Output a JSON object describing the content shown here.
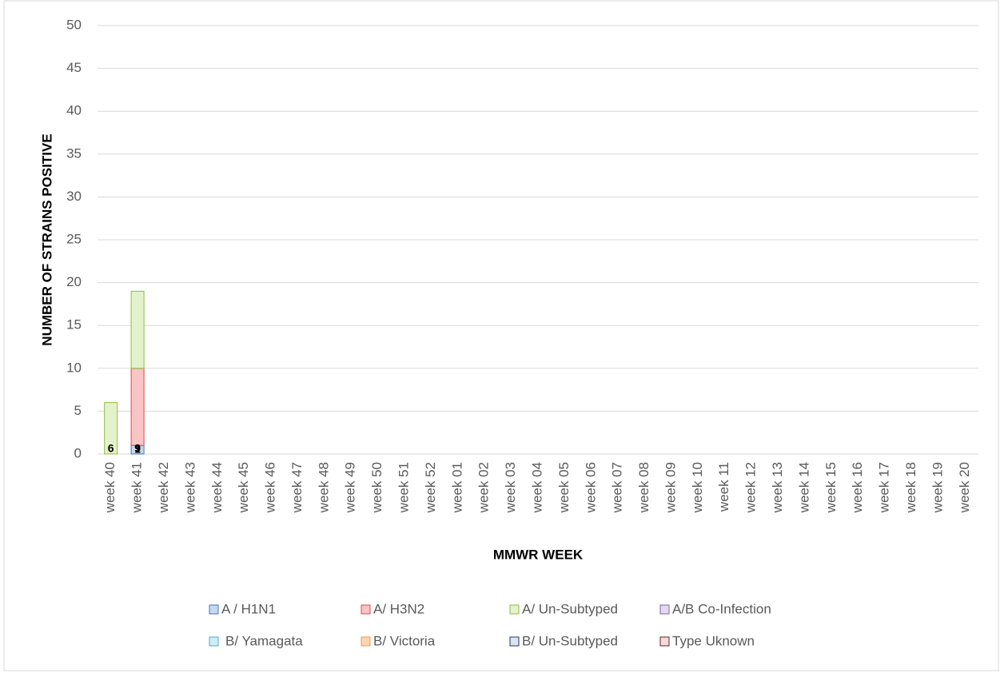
{
  "chart_data": {
    "type": "stacked_bar",
    "y_label": "NUMBER OF STRAINS POSITIVE",
    "x_label": "MMWR WEEK",
    "categories": [
      "week 40",
      "week 41",
      "week 42",
      "week 43",
      "week 44",
      "week 45",
      "week 46",
      "week 47",
      "week 48",
      "week 49",
      "week 50",
      "week 51",
      "week 52",
      "week 01",
      "week 02",
      "week 03",
      "week 04",
      "week 05",
      "week 06",
      "week 07",
      "week 08",
      "week 09",
      "week 10",
      "week 11",
      "week 12",
      "week 13",
      "week 14",
      "week 15",
      "week 16",
      "week 17",
      "week 18",
      "week 19",
      "week 20"
    ],
    "series": [
      {
        "name": "A / H1N1",
        "color": "#c5d9f1",
        "edge": "#4472c4",
        "values": [
          null,
          1,
          null,
          null,
          null,
          null,
          null,
          null,
          null,
          null,
          null,
          null,
          null,
          null,
          null,
          null,
          null,
          null,
          null,
          null,
          null,
          null,
          null,
          null,
          null,
          null,
          null,
          null,
          null,
          null,
          null,
          null,
          null
        ]
      },
      {
        "name": "A/ H3N2",
        "color": "#f8c4c4",
        "edge": "#e04848",
        "values": [
          null,
          9,
          null,
          null,
          null,
          null,
          null,
          null,
          null,
          null,
          null,
          null,
          null,
          null,
          null,
          null,
          null,
          null,
          null,
          null,
          null,
          null,
          null,
          null,
          null,
          null,
          null,
          null,
          null,
          null,
          null,
          null,
          null
        ]
      },
      {
        "name": "A/ Un-Subtyped",
        "color": "#e4f2cc",
        "edge": "#8cbf3f",
        "values": [
          6,
          9,
          null,
          null,
          null,
          null,
          null,
          null,
          null,
          null,
          null,
          null,
          null,
          null,
          null,
          null,
          null,
          null,
          null,
          null,
          null,
          null,
          null,
          null,
          null,
          null,
          null,
          null,
          null,
          null,
          null,
          null,
          null
        ]
      },
      {
        "name": "A/B Co-Infection",
        "color": "#e4d8f2",
        "edge": "#8064a2",
        "values": [
          null,
          null,
          null,
          null,
          null,
          null,
          null,
          null,
          null,
          null,
          null,
          null,
          null,
          null,
          null,
          null,
          null,
          null,
          null,
          null,
          null,
          null,
          null,
          null,
          null,
          null,
          null,
          null,
          null,
          null,
          null,
          null,
          null
        ]
      },
      {
        "name": "B/ Yamagata",
        "color": "#cdeef8",
        "edge": "#4bacc6",
        "values": [
          null,
          null,
          null,
          null,
          null,
          null,
          null,
          null,
          null,
          null,
          null,
          null,
          null,
          null,
          null,
          null,
          null,
          null,
          null,
          null,
          null,
          null,
          null,
          null,
          null,
          null,
          null,
          null,
          null,
          null,
          null,
          null,
          null
        ]
      },
      {
        "name": "B/ Victoria",
        "color": "#fcd5b4",
        "edge": "#f79646",
        "values": [
          null,
          null,
          null,
          null,
          null,
          null,
          null,
          null,
          null,
          null,
          null,
          null,
          null,
          null,
          null,
          null,
          null,
          null,
          null,
          null,
          null,
          null,
          null,
          null,
          null,
          null,
          null,
          null,
          null,
          null,
          null,
          null,
          null
        ]
      },
      {
        "name": "B/ Un-Subtyped",
        "color": "#dbe5f1",
        "edge": "#1f3864",
        "values": [
          null,
          null,
          null,
          null,
          null,
          null,
          null,
          null,
          null,
          null,
          null,
          null,
          null,
          null,
          null,
          null,
          null,
          null,
          null,
          null,
          null,
          null,
          null,
          null,
          null,
          null,
          null,
          null,
          null,
          null,
          null,
          null,
          null
        ]
      },
      {
        "name": "Type Uknown",
        "color": "#f2dcdb",
        "edge": "#632523",
        "values": [
          null,
          null,
          null,
          null,
          null,
          null,
          null,
          null,
          null,
          null,
          null,
          null,
          null,
          null,
          null,
          null,
          null,
          null,
          null,
          null,
          null,
          null,
          null,
          null,
          null,
          null,
          null,
          null,
          null,
          null,
          null,
          null,
          null
        ]
      }
    ],
    "ylim": [
      0,
      50
    ],
    "yticks": [
      0,
      5,
      10,
      15,
      20,
      25,
      30,
      35,
      40,
      45,
      50
    ],
    "grid": true
  }
}
